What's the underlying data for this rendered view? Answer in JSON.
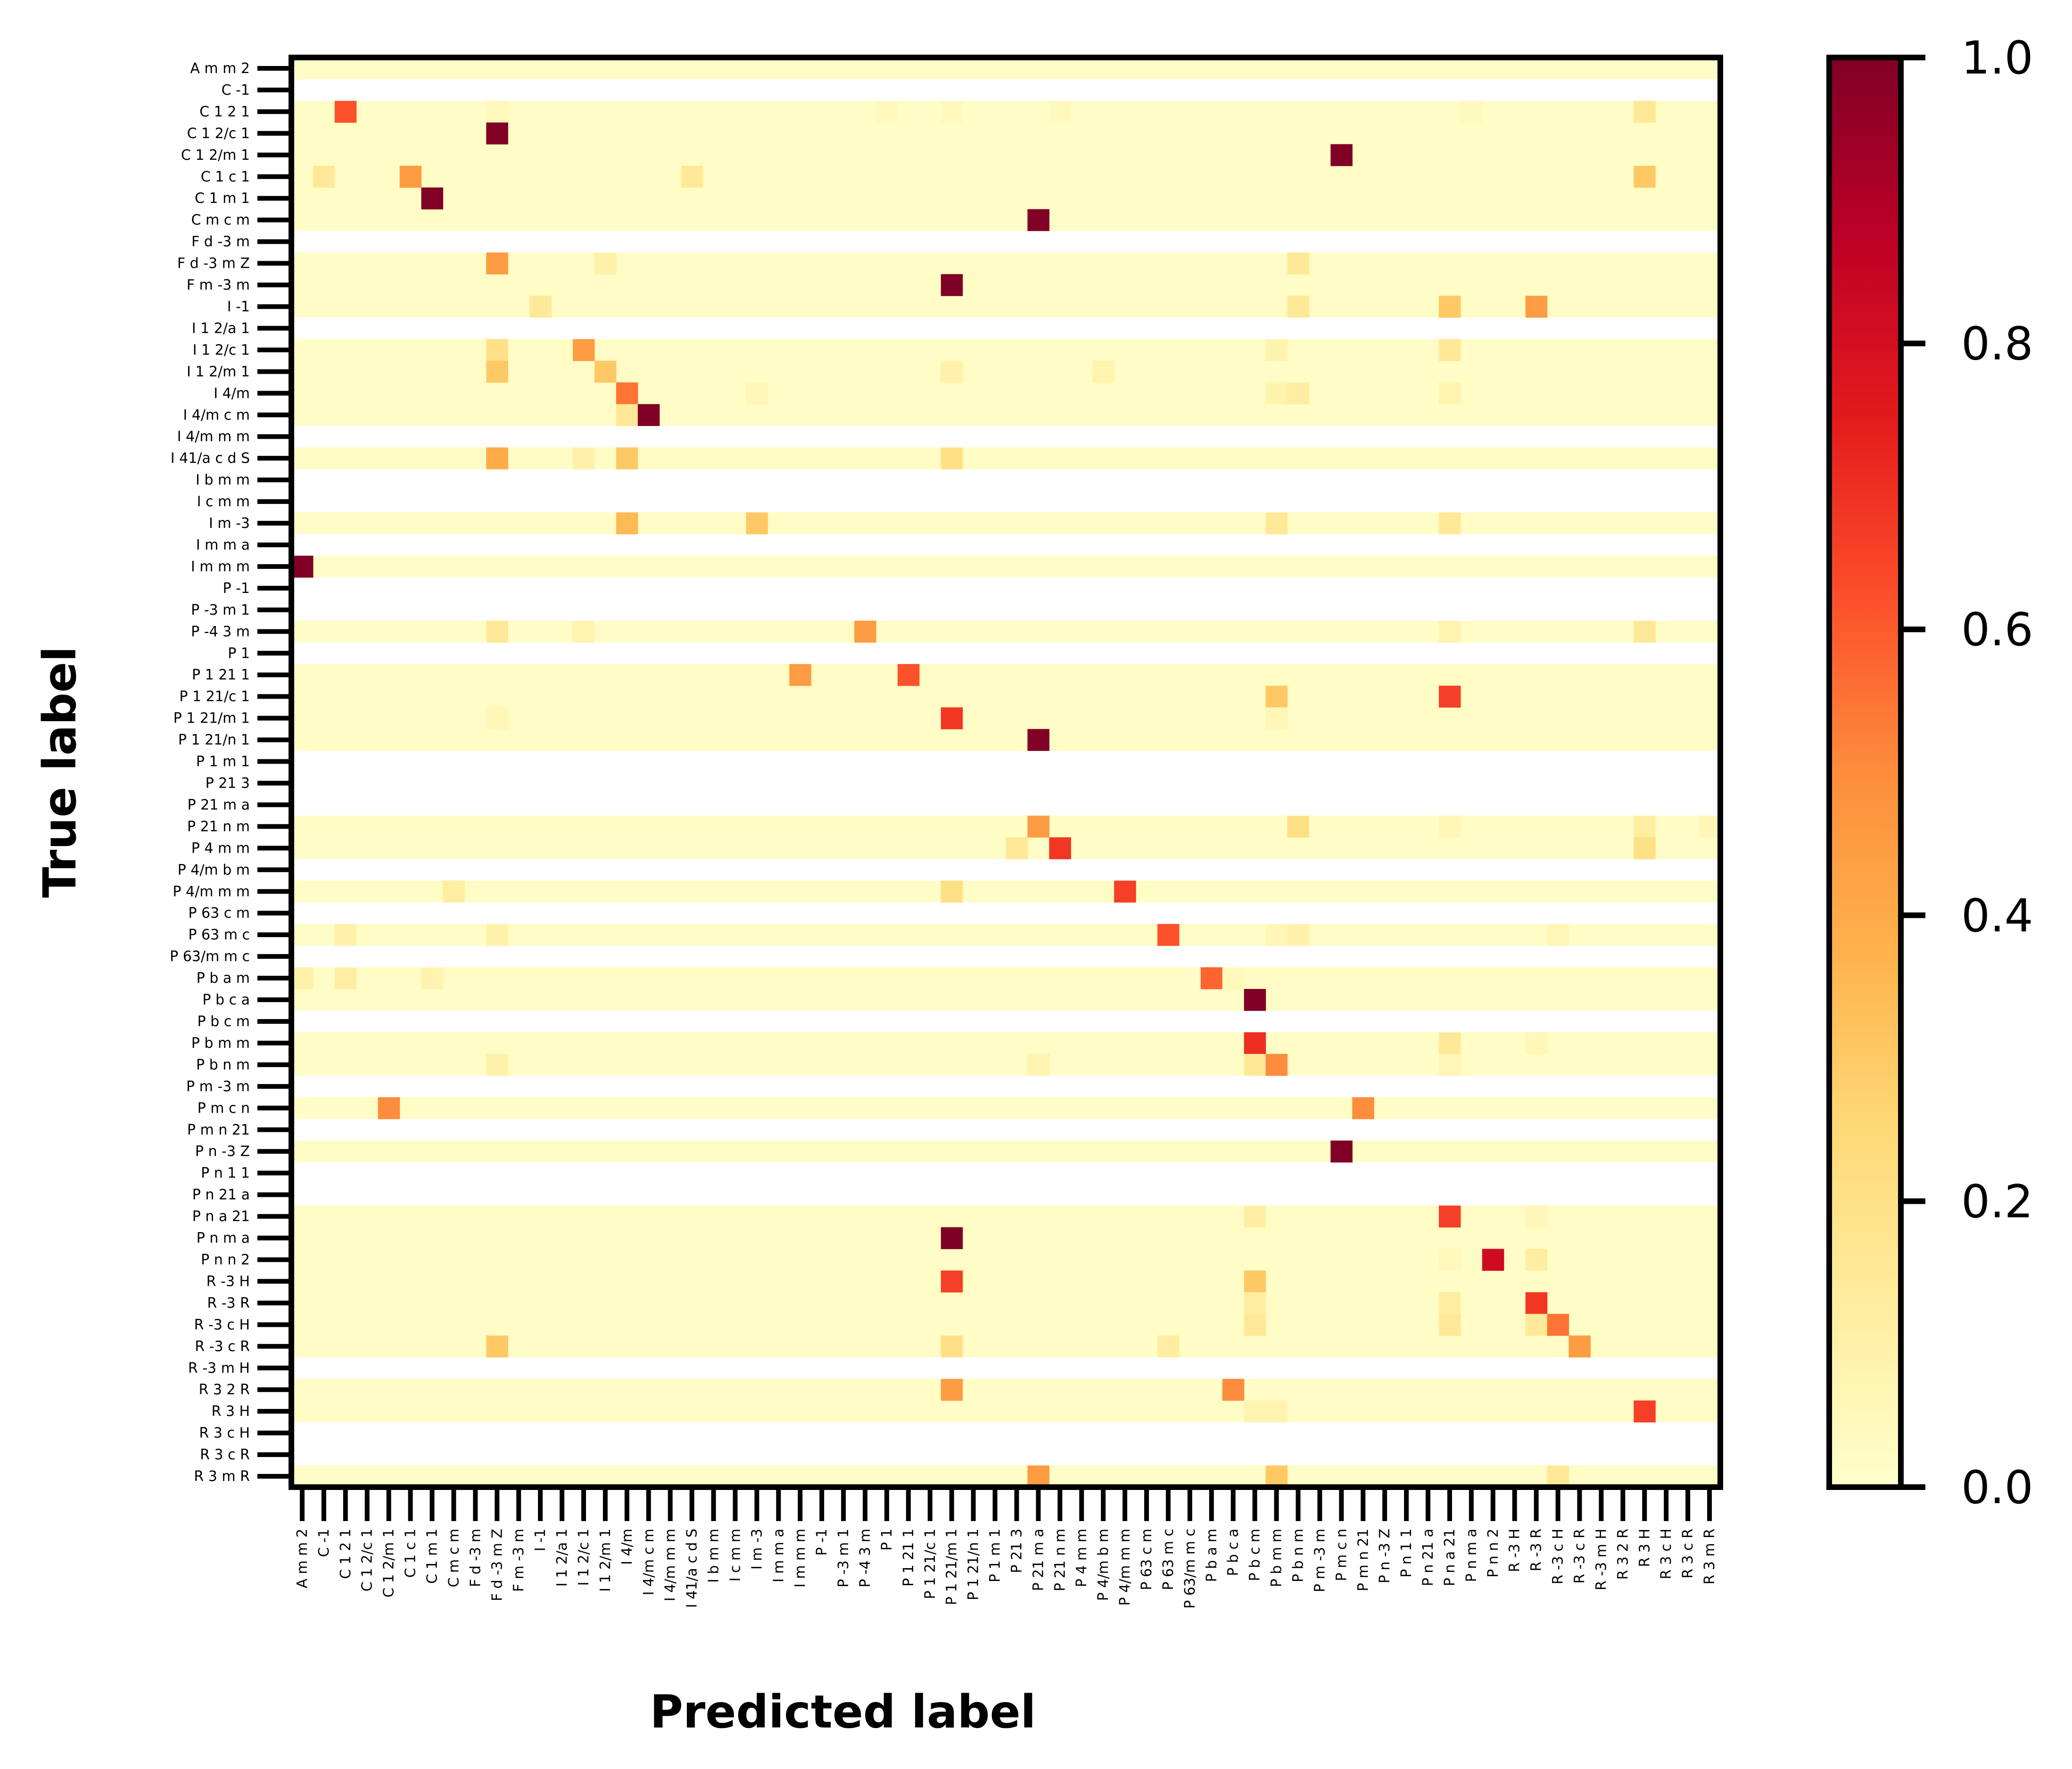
{
  "chart_data": {
    "type": "heatmap",
    "title": "",
    "xlabel": "Predicted label",
    "ylabel": "True label",
    "labels": [
      "A m m 2",
      "C -1",
      "C 1 2 1",
      "C 1 2/c 1",
      "C 1 2/m 1",
      "C 1 c 1",
      "C 1 m 1",
      "C m c m",
      "F d -3 m",
      "F d -3 m Z",
      "F m -3 m",
      "I -1",
      "I 1 2/a 1",
      "I 1 2/c 1",
      "I 1 2/m 1",
      "I 4/m",
      "I 4/m c m",
      "I 4/m m m",
      "I 41/a c d S",
      "I b m m",
      "I c m m",
      "I m -3",
      "I m m a",
      "I m m m",
      "P -1",
      "P -3 m 1",
      "P -4 3 m",
      "P 1",
      "P 1 21 1",
      "P 1 21/c 1",
      "P 1 21/m 1",
      "P 1 21/n 1",
      "P 1 m 1",
      "P 21 3",
      "P 21 m a",
      "P 21 n m",
      "P 4 m m",
      "P 4/m b m",
      "P 4/m m m",
      "P 63 c m",
      "P 63 m c",
      "P 63/m m c",
      "P b a m",
      "P b c a",
      "P b c m",
      "P b m m",
      "P b n m",
      "P m -3 m",
      "P m c n",
      "P m n 21",
      "P n -3 Z",
      "P n 1 1",
      "P n 21 a",
      "P n a 21",
      "P n m a",
      "P n n 2",
      "R -3 H",
      "R -3 R",
      "R -3 c H",
      "R -3 c R",
      "R -3 m H",
      "R 3 2 R",
      "R 3 H",
      "R 3 c H",
      "R 3 c R",
      "R 3 m R"
    ],
    "empty_rows": [
      "C -1",
      "F d -3 m",
      "I 1 2/a 1",
      "I 4/m m m",
      "I b m m",
      "I c m m",
      "I m m a",
      "P -1",
      "P -3 m 1",
      "P 1",
      "P 1 m 1",
      "P 21 3",
      "P 21 m a",
      "P 4/m b m",
      "P 63 c m",
      "P 63/m m c",
      "P b c m",
      "P m -3 m",
      "P m n 21",
      "P n 1 1",
      "P n 21 a",
      "R -3 m H",
      "R 3 c H",
      "R 3 c R"
    ],
    "background_value": 0.02,
    "cells": [
      {
        "row": "C 1 2 1",
        "col": "C 1 2 1",
        "value": 0.62
      },
      {
        "row": "C 1 2 1",
        "col": "F d -3 m Z",
        "value": 0.05
      },
      {
        "row": "C 1 2 1",
        "col": "P 1",
        "value": 0.04
      },
      {
        "row": "C 1 2 1",
        "col": "P 1 21/m 1",
        "value": 0.04
      },
      {
        "row": "C 1 2 1",
        "col": "P 21 n m",
        "value": 0.04
      },
      {
        "row": "C 1 2 1",
        "col": "P n m a",
        "value": 0.04
      },
      {
        "row": "C 1 2 1",
        "col": "R 3 H",
        "value": 0.15
      },
      {
        "row": "C 1 2/c 1",
        "col": "F d -3 m Z",
        "value": 1.0
      },
      {
        "row": "C 1 2/m 1",
        "col": "P m c n",
        "value": 1.0
      },
      {
        "row": "C 1 c 1",
        "col": "C -1",
        "value": 0.15
      },
      {
        "row": "C 1 c 1",
        "col": "C 1 c 1",
        "value": 0.45
      },
      {
        "row": "C 1 c 1",
        "col": "I 41/a c d S",
        "value": 0.15
      },
      {
        "row": "C 1 c 1",
        "col": "R 3 H",
        "value": 0.3
      },
      {
        "row": "C 1 m 1",
        "col": "C 1 m 1",
        "value": 1.0
      },
      {
        "row": "C m c m",
        "col": "P 21 m a",
        "value": 1.0
      },
      {
        "row": "F d -3 m Z",
        "col": "F d -3 m Z",
        "value": 0.45
      },
      {
        "row": "F d -3 m Z",
        "col": "I 1 2/m 1",
        "value": 0.1
      },
      {
        "row": "F d -3 m Z",
        "col": "P b n m",
        "value": 0.15
      },
      {
        "row": "F m -3 m",
        "col": "P 1 21/m 1",
        "value": 1.0
      },
      {
        "row": "I -1",
        "col": "I -1",
        "value": 0.15
      },
      {
        "row": "I -1",
        "col": "P b n m",
        "value": 0.15
      },
      {
        "row": "I -1",
        "col": "P n a 21",
        "value": 0.3
      },
      {
        "row": "I -1",
        "col": "R -3 R",
        "value": 0.45
      },
      {
        "row": "I 1 2/c 1",
        "col": "F d -3 m Z",
        "value": 0.2
      },
      {
        "row": "I 1 2/c 1",
        "col": "I 1 2/c 1",
        "value": 0.45
      },
      {
        "row": "I 1 2/c 1",
        "col": "P b m m",
        "value": 0.08
      },
      {
        "row": "I 1 2/c 1",
        "col": "P n a 21",
        "value": 0.15
      },
      {
        "row": "I 1 2/m 1",
        "col": "F d -3 m Z",
        "value": 0.3
      },
      {
        "row": "I 1 2/m 1",
        "col": "I 1 2/m 1",
        "value": 0.3
      },
      {
        "row": "I 1 2/m 1",
        "col": "P 1 21/m 1",
        "value": 0.1
      },
      {
        "row": "I 1 2/m 1",
        "col": "P 4/m b m",
        "value": 0.08
      },
      {
        "row": "I 4/m",
        "col": "I 4/m",
        "value": 0.55
      },
      {
        "row": "I 4/m",
        "col": "I m -3",
        "value": 0.06
      },
      {
        "row": "I 4/m",
        "col": "P b m m",
        "value": 0.08
      },
      {
        "row": "I 4/m",
        "col": "P b n m",
        "value": 0.12
      },
      {
        "row": "I 4/m",
        "col": "P n a 21",
        "value": 0.08
      },
      {
        "row": "I 4/m c m",
        "col": "I 4/m",
        "value": 0.15
      },
      {
        "row": "I 4/m c m",
        "col": "I 4/m c m",
        "value": 1.0
      },
      {
        "row": "I 41/a c d S",
        "col": "F d -3 m Z",
        "value": 0.4
      },
      {
        "row": "I 41/a c d S",
        "col": "I 1 2/c 1",
        "value": 0.1
      },
      {
        "row": "I 41/a c d S",
        "col": "I 4/m",
        "value": 0.3
      },
      {
        "row": "I 41/a c d S",
        "col": "P 1 21/m 1",
        "value": 0.2
      },
      {
        "row": "I m -3",
        "col": "I 4/m",
        "value": 0.35
      },
      {
        "row": "I m -3",
        "col": "I m -3",
        "value": 0.3
      },
      {
        "row": "I m -3",
        "col": "P b m m",
        "value": 0.15
      },
      {
        "row": "I m -3",
        "col": "P n a 21",
        "value": 0.15
      },
      {
        "row": "I m m m",
        "col": "A m m 2",
        "value": 1.0
      },
      {
        "row": "P -4 3 m",
        "col": "F d -3 m Z",
        "value": 0.15
      },
      {
        "row": "P -4 3 m",
        "col": "I 1 2/c 1",
        "value": 0.08
      },
      {
        "row": "P -4 3 m",
        "col": "P -4 3 m",
        "value": 0.45
      },
      {
        "row": "P -4 3 m",
        "col": "P n a 21",
        "value": 0.08
      },
      {
        "row": "P -4 3 m",
        "col": "R 3 H",
        "value": 0.15
      },
      {
        "row": "P 1 21 1",
        "col": "I m m m",
        "value": 0.45
      },
      {
        "row": "P 1 21 1",
        "col": "P 1 21 1",
        "value": 0.62
      },
      {
        "row": "P 1 21/c 1",
        "col": "P b m m",
        "value": 0.3
      },
      {
        "row": "P 1 21/c 1",
        "col": "P n a 21",
        "value": 0.66
      },
      {
        "row": "P 1 21/m 1",
        "col": "F d -3 m Z",
        "value": 0.06
      },
      {
        "row": "P 1 21/m 1",
        "col": "P 1 21/m 1",
        "value": 0.68
      },
      {
        "row": "P 1 21/m 1",
        "col": "P b m m",
        "value": 0.06
      },
      {
        "row": "P 1 21/n 1",
        "col": "P 21 m a",
        "value": 1.0
      },
      {
        "row": "P 21 n m",
        "col": "P 21 m a",
        "value": 0.45
      },
      {
        "row": "P 21 n m",
        "col": "P b n m",
        "value": 0.2
      },
      {
        "row": "P 21 n m",
        "col": "P n a 21",
        "value": 0.06
      },
      {
        "row": "P 21 n m",
        "col": "R 3 H",
        "value": 0.12
      },
      {
        "row": "P 21 n m",
        "col": "R 3 m R",
        "value": 0.06
      },
      {
        "row": "P 4 m m",
        "col": "P 21 3",
        "value": 0.15
      },
      {
        "row": "P 4 m m",
        "col": "P 21 n m",
        "value": 0.68
      },
      {
        "row": "P 4 m m",
        "col": "R 3 H",
        "value": 0.2
      },
      {
        "row": "P 4/m m m",
        "col": "C m c m",
        "value": 0.12
      },
      {
        "row": "P 4/m m m",
        "col": "P 1 21/m 1",
        "value": 0.2
      },
      {
        "row": "P 4/m m m",
        "col": "P 4/m m m",
        "value": 0.66
      },
      {
        "row": "P 63 m c",
        "col": "C 1 2 1",
        "value": 0.1
      },
      {
        "row": "P 63 m c",
        "col": "F d -3 m Z",
        "value": 0.1
      },
      {
        "row": "P 63 m c",
        "col": "P 63 m c",
        "value": 0.62
      },
      {
        "row": "P 63 m c",
        "col": "P b m m",
        "value": 0.06
      },
      {
        "row": "P 63 m c",
        "col": "P b n m",
        "value": 0.1
      },
      {
        "row": "P 63 m c",
        "col": "R -3 c H",
        "value": 0.06
      },
      {
        "row": "P b a m",
        "col": "A m m 2",
        "value": 0.1
      },
      {
        "row": "P b a m",
        "col": "C 1 2 1",
        "value": 0.12
      },
      {
        "row": "P b a m",
        "col": "C 1 m 1",
        "value": 0.08
      },
      {
        "row": "P b a m",
        "col": "P b a m",
        "value": 0.58
      },
      {
        "row": "P b a m",
        "col": "P b c a",
        "value": 0.05
      },
      {
        "row": "P b c a",
        "col": "P b c m",
        "value": 1.0
      },
      {
        "row": "P b m m",
        "col": "P b c m",
        "value": 0.7
      },
      {
        "row": "P b m m",
        "col": "P n a 21",
        "value": 0.15
      },
      {
        "row": "P b m m",
        "col": "R -3 R",
        "value": 0.06
      },
      {
        "row": "P b n m",
        "col": "F d -3 m Z",
        "value": 0.1
      },
      {
        "row": "P b n m",
        "col": "P 21 m a",
        "value": 0.08
      },
      {
        "row": "P b n m",
        "col": "P b c m",
        "value": 0.15
      },
      {
        "row": "P b n m",
        "col": "P b m m",
        "value": 0.5
      },
      {
        "row": "P b n m",
        "col": "P n a 21",
        "value": 0.06
      },
      {
        "row": "P m c n",
        "col": "C 1 2/m 1",
        "value": 0.5
      },
      {
        "row": "P m c n",
        "col": "P m n 21",
        "value": 0.5
      },
      {
        "row": "P n -3 Z",
        "col": "P m c n",
        "value": 1.0
      },
      {
        "row": "P n a 21",
        "col": "P b c m",
        "value": 0.12
      },
      {
        "row": "P n a 21",
        "col": "P n a 21",
        "value": 0.66
      },
      {
        "row": "P n a 21",
        "col": "R -3 R",
        "value": 0.06
      },
      {
        "row": "P n m a",
        "col": "P 1 21/m 1",
        "value": 1.0
      },
      {
        "row": "P n n 2",
        "col": "P n a 21",
        "value": 0.05
      },
      {
        "row": "P n n 2",
        "col": "P n n 2",
        "value": 0.82
      },
      {
        "row": "P n n 2",
        "col": "R -3 R",
        "value": 0.12
      },
      {
        "row": "R -3 H",
        "col": "P 1 21/m 1",
        "value": 0.66
      },
      {
        "row": "R -3 H",
        "col": "P b c m",
        "value": 0.3
      },
      {
        "row": "R -3 R",
        "col": "P b c m",
        "value": 0.12
      },
      {
        "row": "R -3 R",
        "col": "P n a 21",
        "value": 0.12
      },
      {
        "row": "R -3 R",
        "col": "R -3 R",
        "value": 0.68
      },
      {
        "row": "R -3 c H",
        "col": "P b c m",
        "value": 0.15
      },
      {
        "row": "R -3 c H",
        "col": "P n a 21",
        "value": 0.15
      },
      {
        "row": "R -3 c H",
        "col": "R -3 R",
        "value": 0.15
      },
      {
        "row": "R -3 c H",
        "col": "R -3 c H",
        "value": 0.55
      },
      {
        "row": "R -3 c R",
        "col": "F d -3 m Z",
        "value": 0.3
      },
      {
        "row": "R -3 c R",
        "col": "P 1 21/m 1",
        "value": 0.2
      },
      {
        "row": "R -3 c R",
        "col": "P 63 m c",
        "value": 0.12
      },
      {
        "row": "R -3 c R",
        "col": "R -3 c R",
        "value": 0.45
      },
      {
        "row": "R 3 2 R",
        "col": "P 1 21/m 1",
        "value": 0.45
      },
      {
        "row": "R 3 2 R",
        "col": "P b c a",
        "value": 0.5
      },
      {
        "row": "R 3 H",
        "col": "P b c m",
        "value": 0.08
      },
      {
        "row": "R 3 H",
        "col": "P b m m",
        "value": 0.08
      },
      {
        "row": "R 3 H",
        "col": "R 3 H",
        "value": 0.66
      },
      {
        "row": "R 3 m R",
        "col": "P 21 m a",
        "value": 0.45
      },
      {
        "row": "R 3 m R",
        "col": "P b m m",
        "value": 0.3
      },
      {
        "row": "R 3 m R",
        "col": "R -3 c H",
        "value": 0.15
      }
    ],
    "colorbar": {
      "colormap": "YlOrRd",
      "range": [
        0.0,
        1.0
      ],
      "ticks": [
        "0.0",
        "0.2",
        "0.4",
        "0.6",
        "0.8",
        "1.0"
      ]
    }
  }
}
